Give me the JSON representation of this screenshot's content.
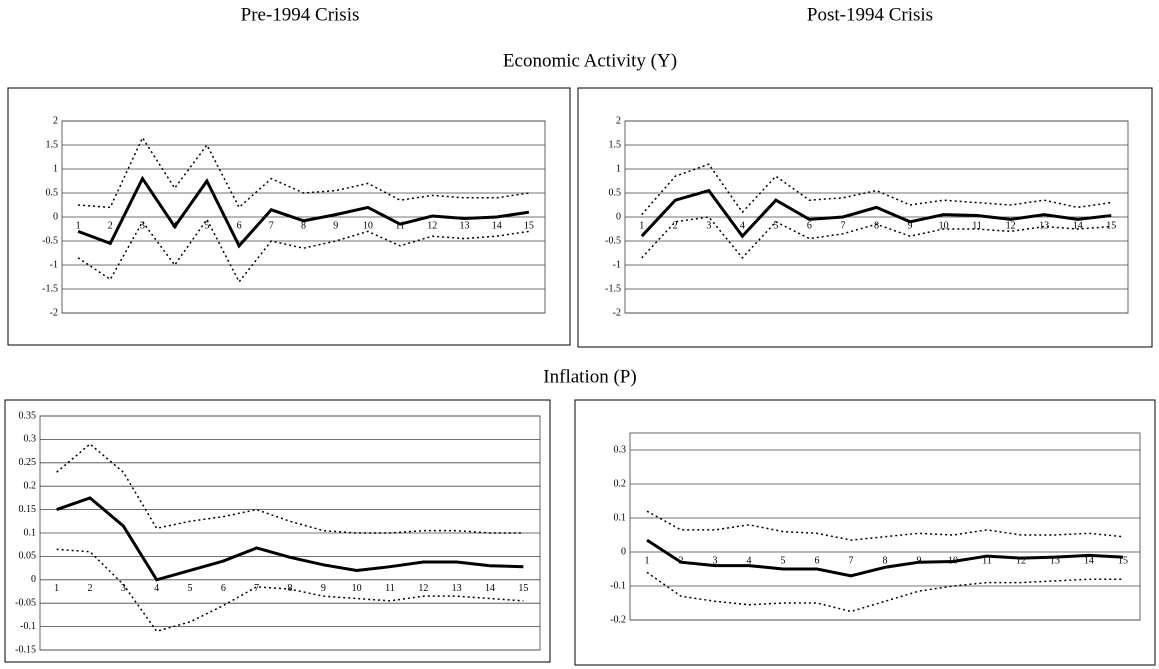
{
  "column_titles": [
    "Pre-1994 Crisis",
    "Post-1994 Crisis"
  ],
  "row_titles": [
    "Economic Activity (Y)",
    "Inflation (P)"
  ],
  "chart_data": [
    {
      "type": "line",
      "categories": [
        "1",
        "2",
        "3",
        "4",
        "5",
        "6",
        "7",
        "8",
        "9",
        "10",
        "11",
        "12",
        "13",
        "14",
        "15"
      ],
      "ylim": [
        -2,
        2
      ],
      "yticks": [
        -2,
        -1.5,
        -1,
        -0.5,
        0,
        0.5,
        1,
        1.5,
        2
      ],
      "grid": true,
      "series": [
        {
          "color": "#000000",
          "style": "solid",
          "values": [
            -0.3,
            -0.55,
            0.8,
            -0.2,
            0.75,
            -0.6,
            0.15,
            -0.08,
            0.05,
            0.2,
            -0.15,
            0.02,
            -0.03,
            0,
            0.1
          ]
        },
        {
          "color": "#000000",
          "style": "dotted",
          "values": [
            0.25,
            0.2,
            1.65,
            0.6,
            1.5,
            0.2,
            0.8,
            0.5,
            0.55,
            0.7,
            0.35,
            0.45,
            0.4,
            0.4,
            0.5
          ]
        },
        {
          "color": "#000000",
          "style": "dotted",
          "values": [
            -0.85,
            -1.3,
            -0.1,
            -1.0,
            -0.05,
            -1.35,
            -0.5,
            -0.65,
            -0.5,
            -0.3,
            -0.6,
            -0.4,
            -0.45,
            -0.4,
            -0.3
          ]
        }
      ]
    },
    {
      "type": "line",
      "categories": [
        "1",
        "2",
        "3",
        "4",
        "5",
        "6",
        "7",
        "8",
        "9",
        "10",
        "11",
        "12",
        "13",
        "14",
        "15"
      ],
      "ylim": [
        -2,
        2
      ],
      "yticks": [
        -2,
        -1.5,
        -1,
        -0.5,
        0,
        0.5,
        1,
        1.5,
        2
      ],
      "grid": true,
      "series": [
        {
          "color": "#000000",
          "style": "solid",
          "values": [
            -0.4,
            0.35,
            0.55,
            -0.4,
            0.35,
            -0.05,
            0,
            0.2,
            -0.1,
            0.05,
            0.03,
            -0.05,
            0.05,
            -0.05,
            0.03
          ]
        },
        {
          "color": "#000000",
          "style": "dotted",
          "values": [
            0.05,
            0.85,
            1.1,
            0.1,
            0.85,
            0.35,
            0.4,
            0.55,
            0.25,
            0.35,
            0.3,
            0.25,
            0.35,
            0.2,
            0.3
          ]
        },
        {
          "color": "#000000",
          "style": "dotted",
          "values": [
            -0.85,
            -0.1,
            0,
            -0.85,
            -0.1,
            -0.45,
            -0.35,
            -0.15,
            -0.4,
            -0.25,
            -0.25,
            -0.3,
            -0.2,
            -0.25,
            -0.2
          ]
        }
      ]
    },
    {
      "type": "line",
      "categories": [
        "1",
        "2",
        "3",
        "4",
        "5",
        "6",
        "7",
        "8",
        "9",
        "10",
        "11",
        "12",
        "13",
        "14",
        "15"
      ],
      "ylim": [
        -0.15,
        0.35
      ],
      "yticks": [
        -0.15,
        -0.1,
        -0.05,
        0,
        0.05,
        0.1,
        0.15,
        0.2,
        0.25,
        0.3,
        0.35
      ],
      "grid": true,
      "series": [
        {
          "color": "#000000",
          "style": "solid",
          "values": [
            0.15,
            0.175,
            0.115,
            0,
            0.02,
            0.04,
            0.068,
            0.048,
            0.032,
            0.02,
            0.028,
            0.038,
            0.038,
            0.03,
            0.028
          ]
        },
        {
          "color": "#000000",
          "style": "dotted",
          "values": [
            0.23,
            0.29,
            0.23,
            0.11,
            0.125,
            0.135,
            0.15,
            0.125,
            0.105,
            0.1,
            0.1,
            0.105,
            0.105,
            0.1,
            0.1
          ]
        },
        {
          "color": "#000000",
          "style": "dotted",
          "values": [
            0.065,
            0.06,
            -0.01,
            -0.11,
            -0.09,
            -0.055,
            -0.015,
            -0.02,
            -0.035,
            -0.04,
            -0.045,
            -0.035,
            -0.035,
            -0.04,
            -0.045
          ]
        }
      ]
    },
    {
      "type": "line",
      "categories": [
        "1",
        "2",
        "3",
        "4",
        "5",
        "6",
        "7",
        "8",
        "9",
        "10",
        "11",
        "12",
        "13",
        "14",
        "15"
      ],
      "ylim": [
        -0.2,
        0.35
      ],
      "yticks": [
        -0.2,
        -0.1,
        0,
        0.1,
        0.2,
        0.3
      ],
      "grid": true,
      "series": [
        {
          "color": "#000000",
          "style": "solid",
          "values": [
            0.035,
            -0.03,
            -0.04,
            -0.04,
            -0.05,
            -0.05,
            -0.07,
            -0.045,
            -0.03,
            -0.028,
            -0.012,
            -0.018,
            -0.015,
            -0.01,
            -0.015
          ]
        },
        {
          "color": "#000000",
          "style": "dotted",
          "values": [
            0.12,
            0.065,
            0.065,
            0.08,
            0.06,
            0.055,
            0.035,
            0.045,
            0.055,
            0.05,
            0.065,
            0.05,
            0.05,
            0.055,
            0.045
          ]
        },
        {
          "color": "#000000",
          "style": "dotted",
          "values": [
            -0.06,
            -0.13,
            -0.145,
            -0.155,
            -0.15,
            -0.15,
            -0.175,
            -0.145,
            -0.115,
            -0.1,
            -0.09,
            -0.09,
            -0.085,
            -0.08,
            -0.08
          ]
        }
      ]
    }
  ]
}
